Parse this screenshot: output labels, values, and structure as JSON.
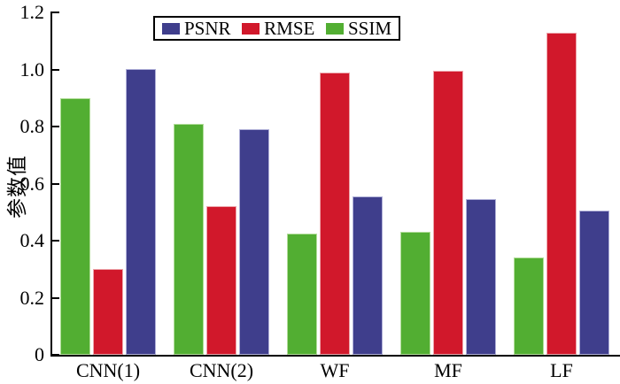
{
  "figure": {
    "background_color": "#ffffff",
    "axis_color": "#000000"
  },
  "chart_data": {
    "type": "bar",
    "title": "",
    "xlabel": "",
    "ylabel": "参数值",
    "categories": [
      "CNN(1)",
      "CNN(2)",
      "WF",
      "MF",
      "LF"
    ],
    "series": [
      {
        "name": "PSNR",
        "color": "#3f3e8c",
        "edge_color": "#b0b0d8",
        "values": [
          1.0,
          0.79,
          0.555,
          0.545,
          0.505
        ]
      },
      {
        "name": "RMSE",
        "color": "#d1182b",
        "edge_color": "#eda5ab",
        "values": [
          0.3,
          0.52,
          0.99,
          0.995,
          1.13
        ]
      },
      {
        "name": "SSIM",
        "color": "#52ae32",
        "edge_color": "#b2dd9a",
        "values": [
          0.9,
          0.81,
          0.425,
          0.43,
          0.34
        ]
      }
    ],
    "bar_order": [
      "SSIM",
      "RMSE",
      "PSNR"
    ],
    "legend_order": [
      "PSNR",
      "RMSE",
      "SSIM"
    ],
    "legend_position": "top-center",
    "ylim": [
      0,
      1.2
    ],
    "yticks": [
      0,
      0.2,
      0.4,
      0.6,
      0.8,
      1.0,
      1.2
    ],
    "ytick_labels": [
      "0",
      "0.2",
      "0.4",
      "0.6",
      "0.8",
      "1.0",
      "1.2"
    ],
    "grid": false
  }
}
